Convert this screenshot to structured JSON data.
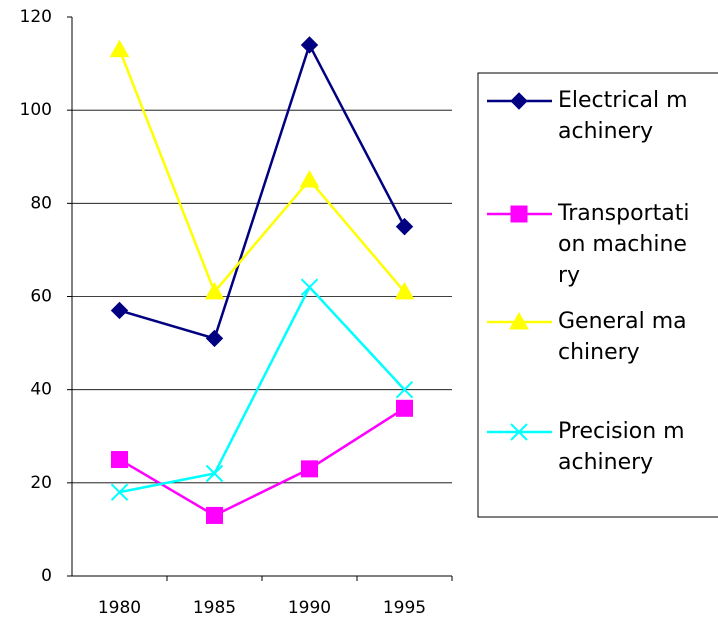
{
  "chart_data": {
    "type": "line",
    "categories": [
      "1980",
      "1985",
      "1990",
      "1995"
    ],
    "series": [
      {
        "name": "Electrical machinery",
        "color": "#000080",
        "marker": "diamond",
        "values": [
          57,
          51,
          114,
          75
        ]
      },
      {
        "name": "Transportation machinery",
        "color": "#ff00ff",
        "marker": "square",
        "values": [
          25,
          13,
          23,
          36
        ]
      },
      {
        "name": "General machinery",
        "color": "#ffff00",
        "marker": "triangle",
        "values": [
          113,
          61,
          85,
          61
        ]
      },
      {
        "name": "Precision machinery",
        "color": "#00ffff",
        "marker": "x",
        "values": [
          18,
          22,
          62,
          40
        ]
      }
    ],
    "ylim": [
      0,
      120
    ],
    "yticks": [
      0,
      20,
      40,
      60,
      80,
      100,
      120
    ],
    "grid": true,
    "legend": "right"
  }
}
